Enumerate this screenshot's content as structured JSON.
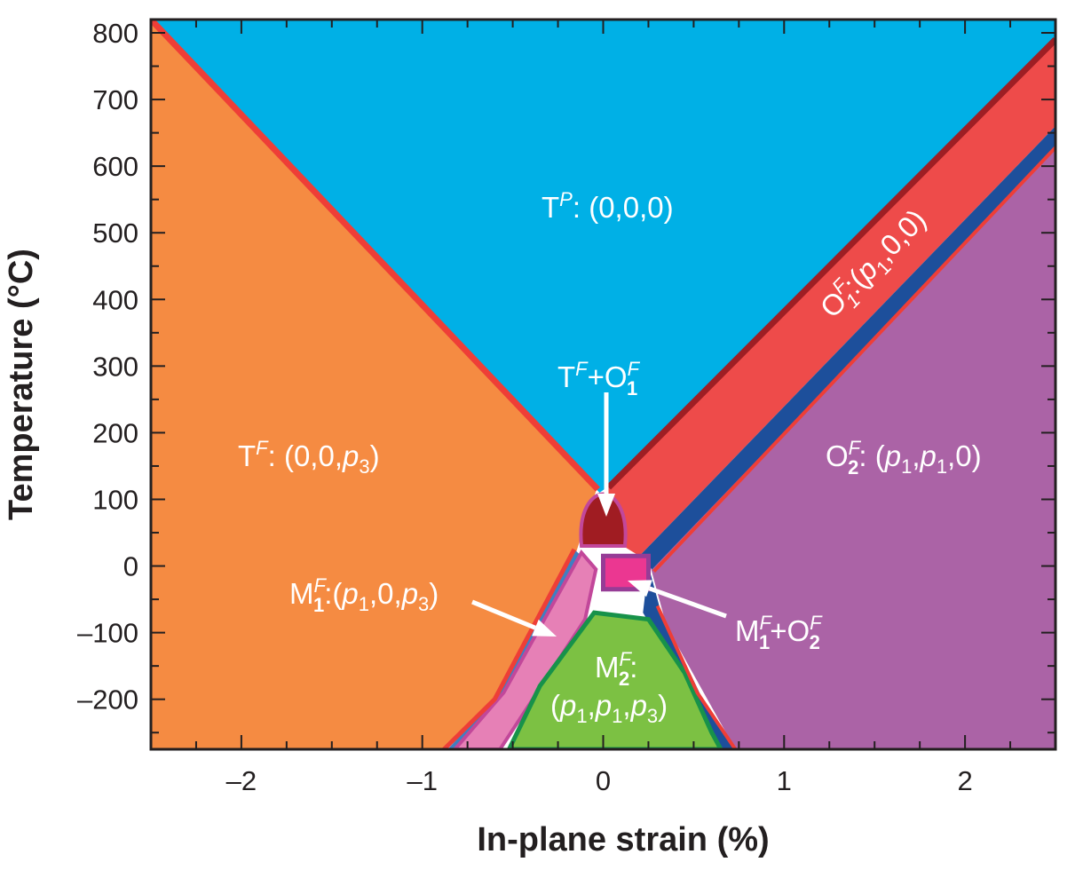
{
  "chart_data": {
    "type": "area",
    "title": "",
    "xlabel": "In-plane strain (%)",
    "ylabel": "Temperature (°C)",
    "xlim": [
      -2.5,
      2.5
    ],
    "ylim": [
      -275,
      820
    ],
    "x_ticks": [
      -2,
      -1,
      0,
      1,
      2
    ],
    "x_tick_labels": [
      "–2",
      "–1",
      "0",
      "1",
      "2"
    ],
    "y_ticks": [
      -200,
      -100,
      0,
      100,
      200,
      300,
      400,
      500,
      600,
      700,
      800
    ],
    "y_tick_labels": [
      "–200",
      "–100",
      "0",
      "100",
      "200",
      "300",
      "400",
      "500",
      "600",
      "700",
      "800"
    ],
    "grid": false,
    "colors": {
      "tp": "#00b0e6",
      "tf": "#f58b42",
      "o1": "#ee4b4a",
      "o1_edge": "#9e1e24",
      "o2": "#ab63a6",
      "m1": "#e680b6",
      "m1_edge": "#c2479a",
      "m2": "#7cc143",
      "m2_edge": "#17924a",
      "coexist_tf_o1": "#a01c22",
      "coexist_m1_o2": "#eb3791",
      "coexist_m1_o2_edge": "#963c96",
      "boundary": "#ee3e37",
      "navy": "#1d4f9b",
      "steel": "#3f7fc1"
    },
    "regions": [
      {
        "phase": "Tᴾ",
        "order": "(0,0,0)",
        "color": "tp",
        "points": [
          [
            -2.5,
            820
          ],
          [
            2.5,
            820
          ],
          [
            2.5,
            790
          ],
          [
            0.03,
            120
          ],
          [
            -0.02,
            110
          ],
          [
            -2.5,
            820
          ]
        ]
      },
      {
        "phase": "Tᶠ",
        "order": "(0,0,p₃)",
        "color": "tf",
        "points": [
          [
            -2.5,
            820
          ],
          [
            -0.04,
            112
          ],
          [
            -0.15,
            20
          ],
          [
            -0.4,
            -140
          ],
          [
            -0.88,
            -275
          ],
          [
            -2.5,
            -275
          ]
        ]
      },
      {
        "phase": "O₁ᶠ",
        "order": "(p₁,0,0)",
        "color": "o1",
        "points": [
          [
            0.02,
            118
          ],
          [
            2.5,
            790
          ],
          [
            2.5,
            660
          ],
          [
            0.2,
            15
          ],
          [
            0.05,
            40
          ]
        ]
      },
      {
        "phase": "O₂ᶠ",
        "order": "(p₁,p₁,0)",
        "color": "o2",
        "points": [
          [
            2.5,
            660
          ],
          [
            2.5,
            -275
          ],
          [
            0.73,
            -275
          ],
          [
            0.35,
            -90
          ],
          [
            0.26,
            0
          ]
        ]
      },
      {
        "phase": "M₁ᶠ",
        "order": "(p₁,0,p₃)",
        "color": "m1",
        "points": [
          [
            -0.12,
            20
          ],
          [
            -0.55,
            -190
          ],
          [
            -0.82,
            -275
          ],
          [
            -0.57,
            -275
          ],
          [
            -0.1,
            -80
          ],
          [
            -0.04,
            -5
          ]
        ]
      },
      {
        "phase": "M₂ᶠ",
        "order": "(p₁,p₁,p₃)",
        "color": "m2",
        "points": [
          [
            -0.05,
            -70
          ],
          [
            0.25,
            -80
          ],
          [
            0.45,
            -160
          ],
          [
            0.6,
            -250
          ],
          [
            0.65,
            -275
          ],
          [
            -0.52,
            -275
          ],
          [
            -0.35,
            -180
          ]
        ]
      },
      {
        "phase": "Tᶠ+O₁ᶠ",
        "order": "",
        "color": "coexist_tf_o1",
        "points": [
          [
            -0.12,
            30
          ],
          [
            -0.05,
            105
          ],
          [
            0.05,
            105
          ],
          [
            0.12,
            30
          ]
        ]
      },
      {
        "phase": "M₁ᶠ+O₂ᶠ",
        "order": "",
        "color": "coexist_m1_o2",
        "points": [
          [
            0.0,
            15
          ],
          [
            0.25,
            15
          ],
          [
            0.25,
            -35
          ],
          [
            0.0,
            -35
          ]
        ]
      }
    ],
    "annotations": {
      "tp": {
        "phase": "T",
        "superscript": "P",
        "order": "(0,0,0)"
      },
      "tf": {
        "phase": "T",
        "superscript": "F",
        "order_pre": "(0,0,",
        "p": "p",
        "sub": "3",
        "order_post": ")"
      },
      "o1": {
        "phase": "O",
        "superscript": "F",
        "subscript": "1",
        "order_pre": "(",
        "p": "p",
        "sub": "1",
        "order_post": ",0,0)"
      },
      "o2": {
        "phase": "O",
        "superscript": "F",
        "subscript": "2",
        "order_pre": "(",
        "p1": "p",
        "sub1": "1",
        "mid": ",",
        "p2": "p",
        "sub2": "1",
        "order_post": ",0)"
      },
      "m1": {
        "phase": "M",
        "superscript": "F",
        "subscript": "1",
        "order_pre": "(",
        "p1": "p",
        "sub1": "1",
        "mid": ",0,",
        "p2": "p",
        "sub2": "3",
        "order_post": ")"
      },
      "m2": {
        "phase": "M",
        "superscript": "F",
        "subscript": "2",
        "order_pre": "(",
        "p1": "p",
        "sub1": "1",
        "mid1": ",",
        "p2": "p",
        "sub2": "1",
        "mid2": ",",
        "p3": "p",
        "sub3": "3",
        "order_post": ")"
      },
      "tf_o1": {
        "a": "T",
        "a_sup": "F",
        "plus": "+",
        "b": "O",
        "b_sup": "F",
        "b_sub": "1"
      },
      "m1_o2": {
        "a": "M",
        "a_sup": "F",
        "a_sub": "1",
        "plus": "+",
        "b": "O",
        "b_sup": "F",
        "b_sub": "2"
      }
    }
  }
}
